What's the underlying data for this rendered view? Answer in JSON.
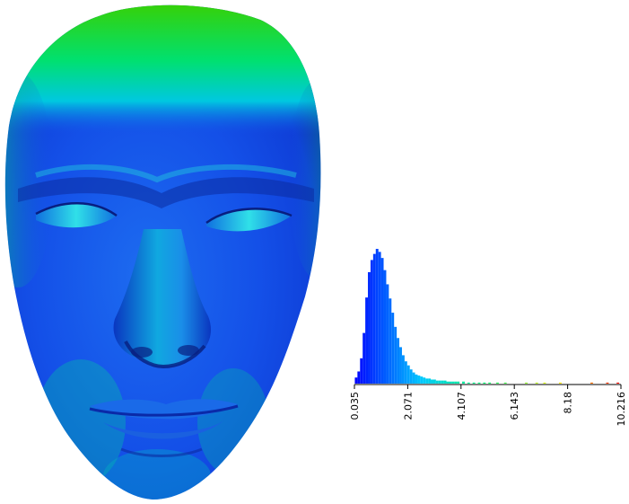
{
  "chart_data": {
    "type": "bar",
    "kind": "histogram",
    "colormap": [
      "#0000ff",
      "#00c8ff",
      "#00ff66",
      "#ffff00",
      "#ff0000"
    ],
    "x_range": [
      0.035,
      10.216
    ],
    "x_ticks": [
      "0.035",
      "2.071",
      "4.107",
      "6.143",
      "8.18",
      "10.216"
    ],
    "x_tick_values": [
      0.035,
      2.071,
      4.107,
      6.143,
      8.18,
      10.216
    ],
    "bin_width": 0.1,
    "bins": [
      {
        "x": 0.1,
        "count": 6
      },
      {
        "x": 0.2,
        "count": 12
      },
      {
        "x": 0.3,
        "count": 25
      },
      {
        "x": 0.4,
        "count": 50
      },
      {
        "x": 0.5,
        "count": 85
      },
      {
        "x": 0.6,
        "count": 110
      },
      {
        "x": 0.7,
        "count": 122
      },
      {
        "x": 0.8,
        "count": 128
      },
      {
        "x": 0.9,
        "count": 133
      },
      {
        "x": 1.0,
        "count": 130
      },
      {
        "x": 1.1,
        "count": 124
      },
      {
        "x": 1.2,
        "count": 112
      },
      {
        "x": 1.3,
        "count": 98
      },
      {
        "x": 1.4,
        "count": 84
      },
      {
        "x": 1.5,
        "count": 70
      },
      {
        "x": 1.6,
        "count": 56
      },
      {
        "x": 1.7,
        "count": 45
      },
      {
        "x": 1.8,
        "count": 36
      },
      {
        "x": 1.9,
        "count": 28
      },
      {
        "x": 2.0,
        "count": 22
      },
      {
        "x": 2.1,
        "count": 18
      },
      {
        "x": 2.2,
        "count": 14
      },
      {
        "x": 2.3,
        "count": 11
      },
      {
        "x": 2.4,
        "count": 9
      },
      {
        "x": 2.5,
        "count": 8
      },
      {
        "x": 2.6,
        "count": 7
      },
      {
        "x": 2.7,
        "count": 6
      },
      {
        "x": 2.8,
        "count": 5
      },
      {
        "x": 2.9,
        "count": 5
      },
      {
        "x": 3.0,
        "count": 4
      },
      {
        "x": 3.1,
        "count": 4
      },
      {
        "x": 3.2,
        "count": 3
      },
      {
        "x": 3.3,
        "count": 3
      },
      {
        "x": 3.4,
        "count": 3
      },
      {
        "x": 3.5,
        "count": 3
      },
      {
        "x": 3.6,
        "count": 2
      },
      {
        "x": 3.7,
        "count": 2
      },
      {
        "x": 3.8,
        "count": 2
      },
      {
        "x": 3.9,
        "count": 2
      },
      {
        "x": 4.0,
        "count": 2
      },
      {
        "x": 4.2,
        "count": 2
      },
      {
        "x": 4.4,
        "count": 1
      },
      {
        "x": 4.6,
        "count": 1
      },
      {
        "x": 4.8,
        "count": 1
      },
      {
        "x": 5.0,
        "count": 1
      },
      {
        "x": 5.2,
        "count": 1
      },
      {
        "x": 5.5,
        "count": 1
      },
      {
        "x": 5.8,
        "count": 1
      },
      {
        "x": 6.6,
        "count": 1
      },
      {
        "x": 7.0,
        "count": 1
      },
      {
        "x": 7.3,
        "count": 1
      },
      {
        "x": 7.9,
        "count": 1
      },
      {
        "x": 9.1,
        "count": 1
      },
      {
        "x": 9.7,
        "count": 1
      },
      {
        "x": 10.1,
        "count": 1
      }
    ],
    "ylim": [
      0,
      133
    ],
    "title": "",
    "xlabel": "",
    "ylabel": ""
  },
  "face_render": {
    "colormap_note": "",
    "base_color": "#1450e8",
    "forehead_color": "#00d84a",
    "highlight_color": "#00ffd0"
  }
}
